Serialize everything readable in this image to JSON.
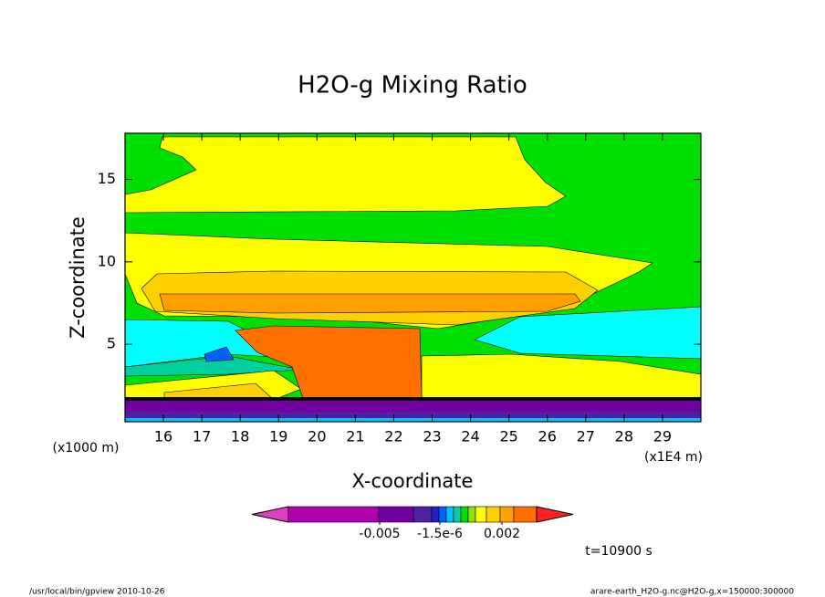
{
  "chart_data": {
    "type": "contour",
    "title": "H2O-g Mixing Ratio",
    "x_label": "X-coordinate",
    "y_label": "Z-coordinate",
    "x_unit": "(x1E4 m)",
    "y_unit": "(x1000 m)",
    "xlim": [
      15,
      30
    ],
    "xticks": [
      16,
      17,
      18,
      19,
      20,
      21,
      22,
      23,
      24,
      25,
      26,
      27,
      28,
      29
    ],
    "ylim": [
      0.3,
      17.8
    ],
    "yticks": [
      5,
      10,
      15
    ],
    "colorbar": {
      "colors": [
        "#e040c0",
        "#b000b0",
        "#7000a0",
        "#5020a0",
        "#2020c0",
        "#0060ff",
        "#00c0ff",
        "#00d0a0",
        "#00e000",
        "#90e000",
        "#ffff00",
        "#ffd000",
        "#ffa000",
        "#ff7000",
        "#ff2020"
      ],
      "ticks": [
        -0.005,
        {
          "value": -1.5e-06,
          "label": "-1.5e-6"
        },
        0.002
      ]
    },
    "time_label": "t=10900 s",
    "footer_left": "/usr/local/bin/gpview  2010-10-26",
    "footer_right": "arare-earth_H2O-g.nc@H2O-g,x=150000:300000"
  }
}
